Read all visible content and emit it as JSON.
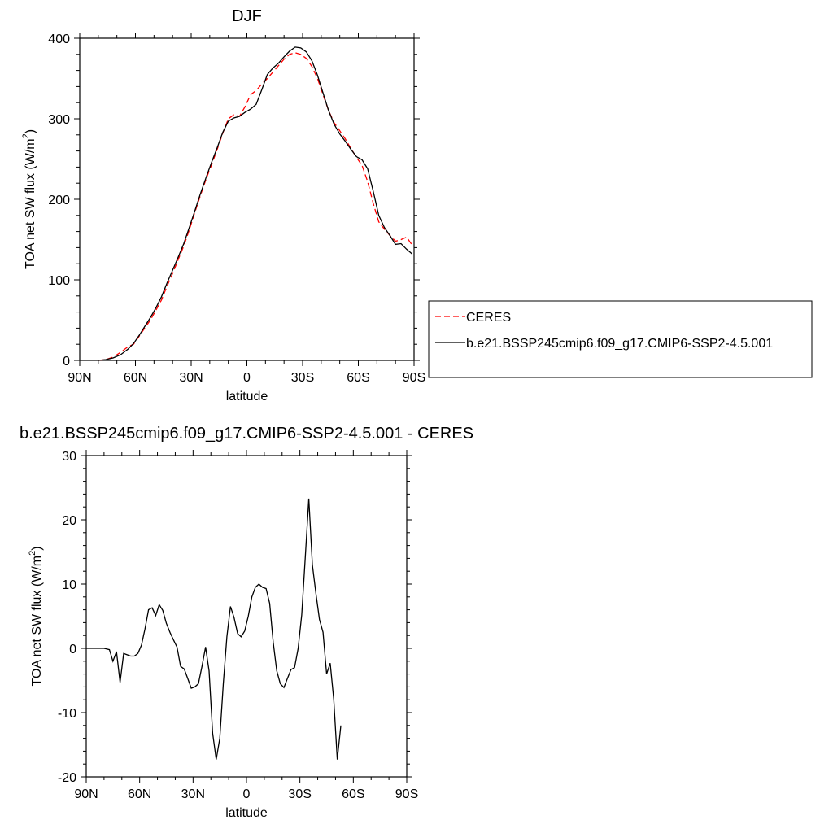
{
  "chart_data": [
    {
      "type": "line",
      "title": "DJF",
      "xlabel": "latitude",
      "ylabel": "TOA net SW flux (W/m",
      "ylabel_sup": "2",
      "ylabel_tail": ")",
      "xlim": [
        -90,
        90
      ],
      "ylim": [
        0,
        400
      ],
      "x_ticks": [
        {
          "value": -90,
          "label": "90N"
        },
        {
          "value": -60,
          "label": "60N"
        },
        {
          "value": -30,
          "label": "30N"
        },
        {
          "value": 0,
          "label": "0"
        },
        {
          "value": 30,
          "label": "30S"
        },
        {
          "value": 60,
          "label": "60S"
        },
        {
          "value": 90,
          "label": "90S"
        }
      ],
      "y_ticks": [
        {
          "value": 0,
          "label": "0"
        },
        {
          "value": 100,
          "label": "100"
        },
        {
          "value": 200,
          "label": "200"
        },
        {
          "value": 300,
          "label": "300"
        },
        {
          "value": 400,
          "label": "400"
        }
      ],
      "legend_position": "right",
      "series": [
        {
          "name": "CERES",
          "color": "#ff0000",
          "dash": true,
          "points": [
            [
              -80,
              0
            ],
            [
              -76,
              1
            ],
            [
              -72,
              4
            ],
            [
              -68,
              10
            ],
            [
              -64,
              17
            ],
            [
              -61,
              20
            ],
            [
              -58,
              30
            ],
            [
              -55,
              40
            ],
            [
              -52,
              50
            ],
            [
              -49,
              62
            ],
            [
              -46,
              75
            ],
            [
              -43,
              92
            ],
            [
              -40,
              108
            ],
            [
              -37,
              125
            ],
            [
              -34,
              142
            ],
            [
              -31,
              162
            ],
            [
              -28,
              184
            ],
            [
              -25,
              205
            ],
            [
              -22,
              225
            ],
            [
              -19,
              243
            ],
            [
              -16,
              262
            ],
            [
              -13,
              282
            ],
            [
              -10,
              300
            ],
            [
              -7,
              305
            ],
            [
              -4,
              303
            ],
            [
              -1,
              315
            ],
            [
              2,
              330
            ],
            [
              5,
              335
            ],
            [
              8,
              343
            ],
            [
              11,
              350
            ],
            [
              14,
              358
            ],
            [
              17,
              366
            ],
            [
              20,
              374
            ],
            [
              23,
              380
            ],
            [
              26,
              382
            ],
            [
              29,
              380
            ],
            [
              32,
              375
            ],
            [
              35,
              365
            ],
            [
              38,
              350
            ],
            [
              41,
              330
            ],
            [
              44,
              310
            ],
            [
              47,
              295
            ],
            [
              50,
              285
            ],
            [
              53,
              275
            ],
            [
              56,
              263
            ],
            [
              59,
              252
            ],
            [
              62,
              242
            ],
            [
              65,
              222
            ],
            [
              68,
              195
            ],
            [
              71,
              172
            ],
            [
              74,
              163
            ],
            [
              77,
              155
            ],
            [
              80,
              148
            ],
            [
              83,
              150
            ],
            [
              86,
              153
            ],
            [
              89,
              143
            ]
          ]
        },
        {
          "name": "b.e21.BSSP245cmip6.f09_g17.CMIP6-SSP2-4.5.001",
          "color": "#000000",
          "dash": false,
          "points": [
            [
              -80,
              0
            ],
            [
              -76,
              1
            ],
            [
              -72,
              3
            ],
            [
              -68,
              7
            ],
            [
              -64,
              14
            ],
            [
              -61,
              21
            ],
            [
              -58,
              31
            ],
            [
              -55,
              42
            ],
            [
              -52,
              53
            ],
            [
              -49,
              65
            ],
            [
              -46,
              79
            ],
            [
              -43,
              96
            ],
            [
              -40,
              112
            ],
            [
              -37,
              128
            ],
            [
              -34,
              145
            ],
            [
              -31,
              165
            ],
            [
              -28,
              186
            ],
            [
              -25,
              207
            ],
            [
              -22,
              227
            ],
            [
              -19,
              246
            ],
            [
              -16,
              264
            ],
            [
              -13,
              283
            ],
            [
              -10,
              297
            ],
            [
              -7,
              301
            ],
            [
              -4,
              303
            ],
            [
              -1,
              308
            ],
            [
              2,
              312
            ],
            [
              5,
              318
            ],
            [
              8,
              336
            ],
            [
              11,
              355
            ],
            [
              14,
              363
            ],
            [
              17,
              369
            ],
            [
              20,
              377
            ],
            [
              23,
              384
            ],
            [
              26,
              389
            ],
            [
              29,
              388
            ],
            [
              32,
              383
            ],
            [
              35,
              372
            ],
            [
              38,
              354
            ],
            [
              41,
              332
            ],
            [
              44,
              310
            ],
            [
              47,
              293
            ],
            [
              50,
              281
            ],
            [
              53,
              272
            ],
            [
              56,
              262
            ],
            [
              59,
              253
            ],
            [
              62,
              249
            ],
            [
              65,
              238
            ],
            [
              68,
              210
            ],
            [
              71,
              180
            ],
            [
              74,
              165
            ],
            [
              77,
              155
            ],
            [
              80,
              144
            ],
            [
              83,
              145
            ],
            [
              86,
              138
            ],
            [
              89,
              132
            ]
          ]
        }
      ]
    },
    {
      "type": "line",
      "title": "b.e21.BSSP245cmip6.f09_g17.CMIP6-SSP2-4.5.001 - CERES",
      "xlabel": "latitude",
      "ylabel": "TOA net SW flux (W/m",
      "ylabel_sup": "2",
      "ylabel_tail": ")",
      "xlim": [
        -90,
        90
      ],
      "ylim": [
        -20,
        30
      ],
      "x_ticks": [
        {
          "value": -90,
          "label": "90N"
        },
        {
          "value": -60,
          "label": "60N"
        },
        {
          "value": -30,
          "label": "30N"
        },
        {
          "value": 0,
          "label": "0"
        },
        {
          "value": 30,
          "label": "30S"
        },
        {
          "value": 60,
          "label": "60S"
        },
        {
          "value": 90,
          "label": "90S"
        }
      ],
      "y_ticks": [
        {
          "value": -20,
          "label": "-20"
        },
        {
          "value": -10,
          "label": "-10"
        },
        {
          "value": 0,
          "label": "0"
        },
        {
          "value": 10,
          "label": "10"
        },
        {
          "value": 20,
          "label": "20"
        },
        {
          "value": 30,
          "label": "30"
        }
      ],
      "series": [
        {
          "color": "#000000",
          "dash": false,
          "points": [
            [
              -90,
              0
            ],
            [
              -80,
              0
            ],
            [
              -77,
              -0.2
            ],
            [
              -75,
              -2
            ],
            [
              -73,
              -0.5
            ],
            [
              -71,
              -5.3
            ],
            [
              -69,
              -0.8
            ],
            [
              -67,
              -1
            ],
            [
              -65,
              -1.2
            ],
            [
              -63,
              -1.2
            ],
            [
              -61,
              -0.8
            ],
            [
              -59,
              0.5
            ],
            [
              -57,
              3
            ],
            [
              -55,
              6
            ],
            [
              -53,
              6.3
            ],
            [
              -51,
              5.1
            ],
            [
              -49,
              6.8
            ],
            [
              -47,
              5.9
            ],
            [
              -45,
              3.9
            ],
            [
              -43,
              2.5
            ],
            [
              -41,
              1.3
            ],
            [
              -39,
              0.2
            ],
            [
              -37,
              -2.8
            ],
            [
              -35,
              -3.2
            ],
            [
              -33,
              -4.7
            ],
            [
              -31,
              -6.2
            ],
            [
              -29,
              -6.0
            ],
            [
              -27,
              -5.5
            ],
            [
              -25,
              -2.8
            ],
            [
              -23,
              0.2
            ],
            [
              -21,
              -3.5
            ],
            [
              -19,
              -13.2
            ],
            [
              -17,
              -17.3
            ],
            [
              -15,
              -14
            ],
            [
              -13,
              -5.5
            ],
            [
              -11,
              1.8
            ],
            [
              -9,
              6.5
            ],
            [
              -7,
              4.8
            ],
            [
              -5,
              2.3
            ],
            [
              -3,
              1.8
            ],
            [
              -1,
              2.7
            ],
            [
              1,
              5
            ],
            [
              3,
              8
            ],
            [
              5,
              9.5
            ],
            [
              7,
              10
            ],
            [
              9,
              9.5
            ],
            [
              11,
              9.3
            ],
            [
              13,
              7
            ],
            [
              15,
              1.0
            ],
            [
              17,
              -3.5
            ],
            [
              19,
              -5.5
            ],
            [
              21,
              -6.1
            ],
            [
              23,
              -4.7
            ],
            [
              25,
              -3.3
            ],
            [
              27,
              -3
            ],
            [
              29,
              0
            ],
            [
              31,
              5.2
            ],
            [
              33,
              14
            ],
            [
              35,
              23.3
            ],
            [
              37,
              13
            ],
            [
              39,
              8.5
            ],
            [
              41,
              4.5
            ],
            [
              43,
              2.5
            ],
            [
              45,
              -4.0
            ],
            [
              47,
              -2.3
            ],
            [
              49,
              -8
            ],
            [
              51,
              -17.3
            ],
            [
              53,
              -12
            ]
          ]
        }
      ]
    }
  ]
}
